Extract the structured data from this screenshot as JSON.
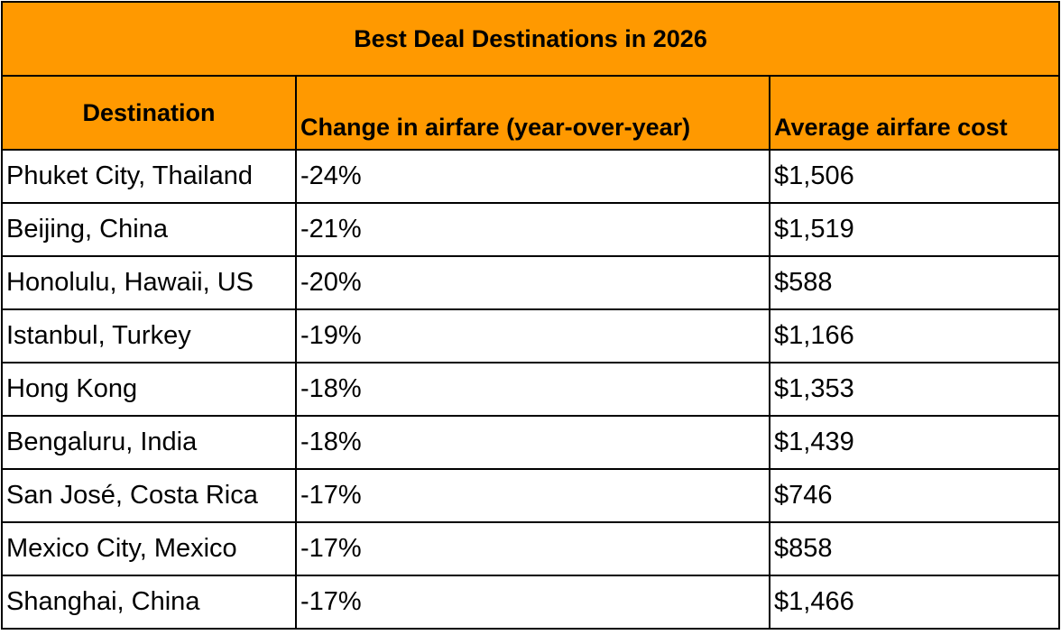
{
  "table": {
    "title": "Best Deal Destinations in 2026",
    "header": [
      "Destination",
      "Change in airfare (year-over-year)",
      "Average airfare cost"
    ],
    "rows": [
      [
        "Phuket City, Thailand",
        "-24%",
        "$1,506"
      ],
      [
        "Beijing, China",
        "-21%",
        "$1,519"
      ],
      [
        "Honolulu, Hawaii, US",
        "-20%",
        "$588"
      ],
      [
        "Istanbul, Turkey",
        "-19%",
        "$1,166"
      ],
      [
        "Hong Kong",
        "-18%",
        "$1,353"
      ],
      [
        "Bengaluru, India",
        "-18%",
        "$1,439"
      ],
      [
        "San José, Costa Rica",
        "-17%",
        "$746"
      ],
      [
        "Mexico City, Mexico",
        "-17%",
        "$858"
      ],
      [
        "Shanghai, China",
        "-17%",
        "$1,466"
      ]
    ]
  }
}
